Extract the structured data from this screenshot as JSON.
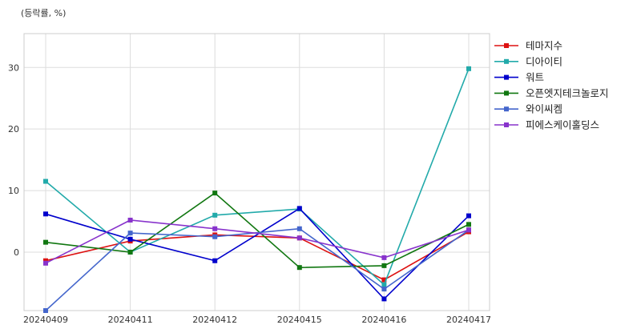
{
  "chart_data": {
    "type": "line",
    "unit_label": "(등락률, %)",
    "x": [
      "20240409",
      "20240411",
      "20240412",
      "20240415",
      "20240416",
      "20240417"
    ],
    "ylim": [
      -9.5,
      35.5
    ],
    "yticks": [
      0,
      10,
      20,
      30
    ],
    "grid": true,
    "legend_position": "right",
    "series": [
      {
        "name": "테마지수",
        "color": "#dd1111",
        "values": [
          -1.4,
          1.8,
          2.8,
          2.3,
          -4.5,
          3.3
        ]
      },
      {
        "name": "디아이티",
        "color": "#22aaaa",
        "values": [
          11.5,
          0.0,
          6.0,
          7.0,
          -5.3,
          29.8
        ]
      },
      {
        "name": "워트",
        "color": "#0000cc",
        "values": [
          6.2,
          2.1,
          -1.4,
          7.1,
          -7.6,
          5.9
        ]
      },
      {
        "name": "오픈엣지테크놀로지",
        "color": "#117711",
        "values": [
          1.6,
          0.0,
          9.6,
          -2.5,
          -2.2,
          4.5
        ]
      },
      {
        "name": "와이씨켐",
        "color": "#4466cc",
        "values": [
          -9.5,
          3.1,
          2.5,
          3.8,
          -6.0,
          3.6
        ]
      },
      {
        "name": "피에스케이홀딩스",
        "color": "#8833cc",
        "values": [
          -1.8,
          5.2,
          3.8,
          2.3,
          -0.9,
          3.6
        ]
      }
    ]
  }
}
